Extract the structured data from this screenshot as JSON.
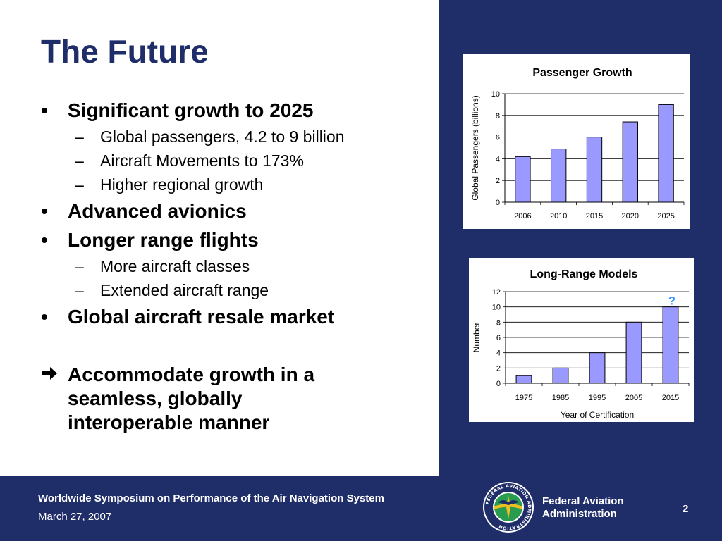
{
  "slide": {
    "title": "The Future",
    "bullets": [
      {
        "text": "Significant growth to 2025",
        "subs": [
          "Global passengers, 4.2 to 9 billion",
          "Aircraft Movements to 173%",
          "Higher regional growth"
        ]
      },
      {
        "text": "Advanced avionics",
        "subs": []
      },
      {
        "text": "Longer range flights",
        "subs": [
          "More aircraft classes",
          "Extended aircraft range"
        ]
      },
      {
        "text": "Global aircraft resale market",
        "subs": []
      }
    ],
    "conclusion_lines": [
      "Accommodate growth in a",
      "seamless, globally",
      "interoperable manner"
    ],
    "bullet_mark": "•",
    "sub_mark": "–",
    "arrow_icon": "arrow-right-icon"
  },
  "footer": {
    "symposium": "Worldwide Symposium on Performance of the Air Navigation System",
    "date": "March 27, 2007",
    "agency_line1": "Federal Aviation",
    "agency_line2": "Administration",
    "page_number": "2",
    "seal_text": "FEDERAL AVIATION ADMINISTRATION"
  },
  "colors": {
    "navy": "#1f2d69",
    "bar_fill": "#9999ff",
    "question_mark": "#3399ff"
  },
  "chart_data": [
    {
      "type": "bar",
      "title": "Passenger Growth",
      "categories": [
        "2006",
        "2010",
        "2015",
        "2020",
        "2025"
      ],
      "values": [
        4.2,
        4.9,
        6.0,
        7.4,
        9.0
      ],
      "xlabel": "",
      "ylabel": "Global Passengers (billions)",
      "ylim": [
        0,
        10
      ],
      "yticks": [
        0,
        2,
        4,
        6,
        8,
        10
      ],
      "grid": true,
      "legend": "none"
    },
    {
      "type": "bar",
      "title": "Long-Range Models",
      "categories": [
        "1975",
        "1985",
        "1995",
        "2005",
        "2015"
      ],
      "values": [
        1,
        2,
        4,
        8,
        10
      ],
      "xlabel": "Year of Certification",
      "ylabel": "Number",
      "ylim": [
        0,
        12
      ],
      "yticks": [
        0,
        2,
        4,
        6,
        8,
        10,
        12
      ],
      "grid": true,
      "legend": "none",
      "annotation": "?"
    }
  ]
}
